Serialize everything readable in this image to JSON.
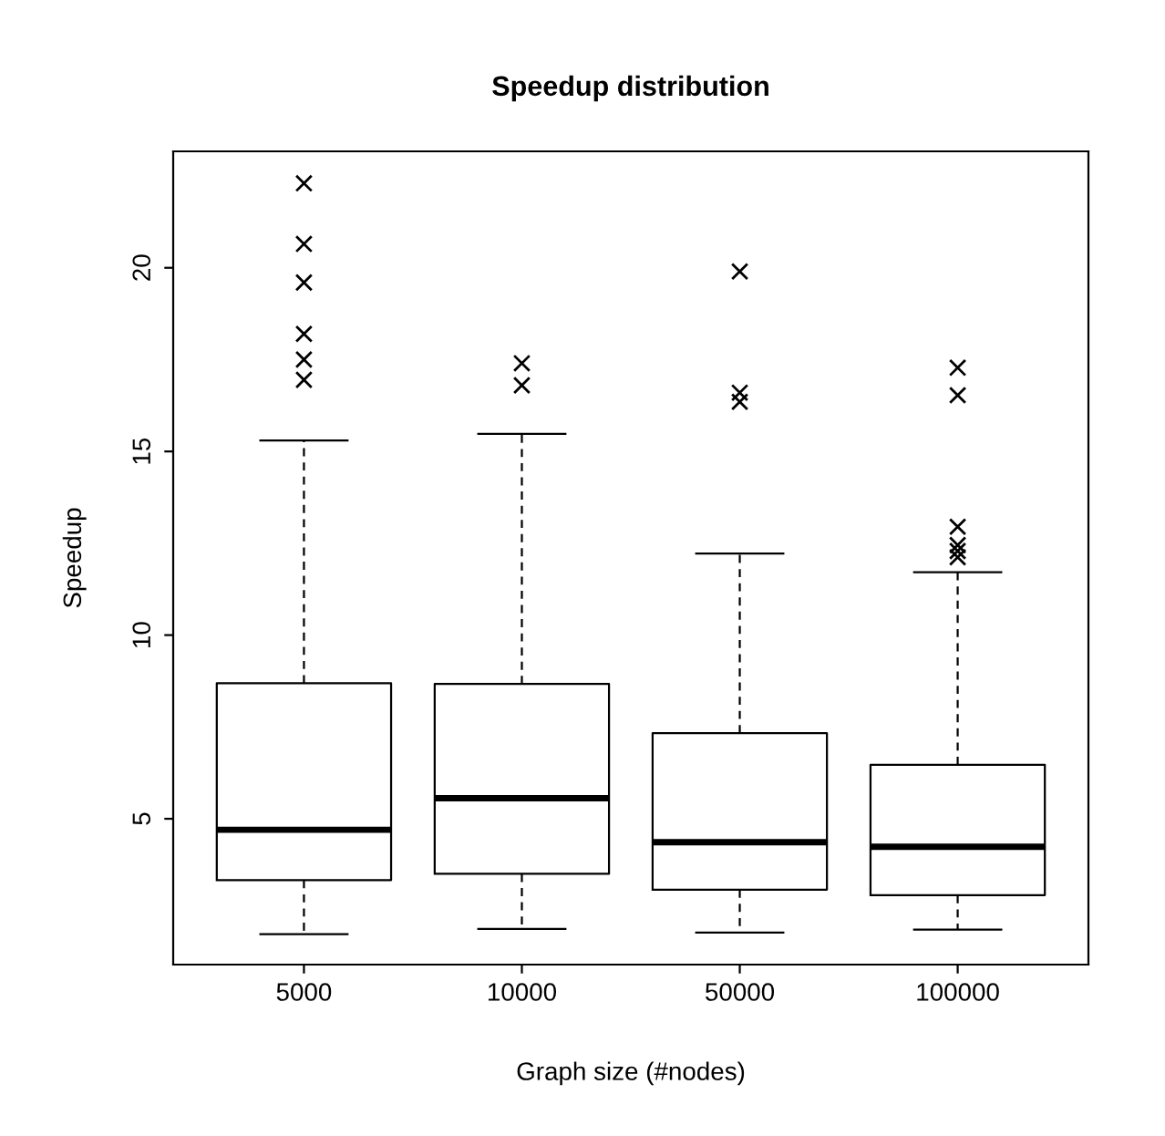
{
  "chart_data": {
    "type": "box",
    "title": "Speedup distribution",
    "xlabel": "Graph size (#nodes)",
    "ylabel": "Speedup",
    "categories": [
      "5000",
      "10000",
      "50000",
      "100000"
    ],
    "boxes": [
      {
        "low": 1.86,
        "q1": 3.33,
        "median": 4.7,
        "q3": 8.69,
        "high": 15.3,
        "outliers": [
          22.3,
          20.65,
          19.6,
          18.2,
          17.5,
          16.95
        ]
      },
      {
        "low": 2.0,
        "q1": 3.5,
        "median": 5.56,
        "q3": 8.67,
        "high": 15.48,
        "outliers": [
          17.4,
          16.8
        ]
      },
      {
        "low": 1.9,
        "q1": 3.07,
        "median": 4.36,
        "q3": 7.33,
        "high": 12.22,
        "outliers": [
          19.9,
          16.6,
          16.35
        ]
      },
      {
        "low": 1.98,
        "q1": 2.92,
        "median": 4.24,
        "q3": 6.47,
        "high": 11.71,
        "outliers": [
          17.28,
          16.53,
          12.95,
          12.45,
          12.29,
          12.12
        ]
      }
    ],
    "ylim": [
      1.03,
      23.17
    ],
    "yticks": [
      5,
      10,
      15,
      20
    ],
    "marker": "cross",
    "grid": false,
    "legend": false
  }
}
